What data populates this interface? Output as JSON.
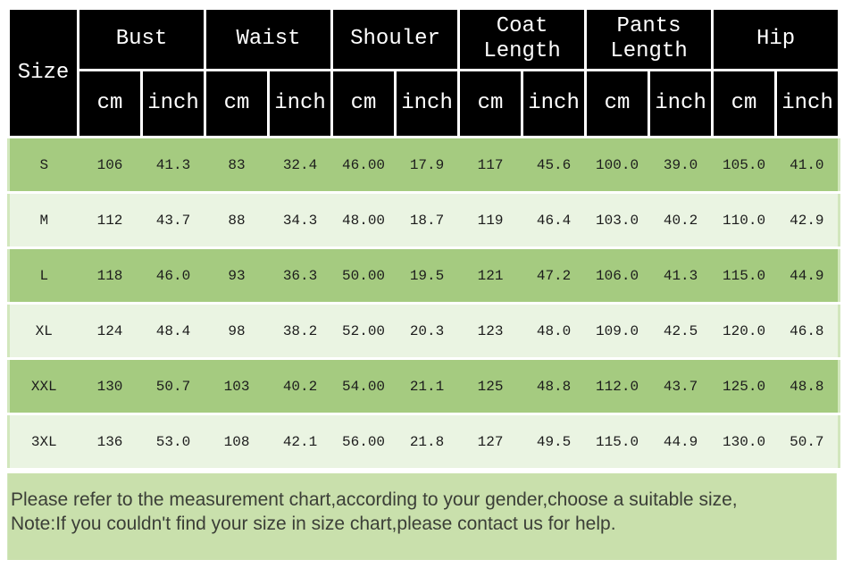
{
  "header": {
    "size": "Size",
    "groups": [
      {
        "label": "Bust",
        "sub": [
          "cm",
          "inch"
        ]
      },
      {
        "label": "Waist",
        "sub": [
          "cm",
          "inch"
        ]
      },
      {
        "label": "Shouler",
        "sub": [
          "cm",
          "inch"
        ]
      },
      {
        "label": "Coat Length",
        "sub": [
          "cm",
          "inch"
        ]
      },
      {
        "label": "Pants Length",
        "sub": [
          "cm",
          "inch"
        ]
      },
      {
        "label": "Hip",
        "sub": [
          "cm",
          "inch"
        ]
      }
    ]
  },
  "chart_data": {
    "type": "table",
    "title": "Garment size measurement chart",
    "columns": [
      "Size",
      "Bust (cm)",
      "Bust (inch)",
      "Waist (cm)",
      "Waist (inch)",
      "Shouler (cm)",
      "Shouler (inch)",
      "Coat Length (cm)",
      "Coat Length (inch)",
      "Pants Length (cm)",
      "Pants Length (inch)",
      "Hip (cm)",
      "Hip (inch)"
    ],
    "rows": [
      [
        "S",
        "106",
        "41.3",
        "83",
        "32.4",
        "46.00",
        "17.9",
        "117",
        "45.6",
        "100.0",
        "39.0",
        "105.0",
        "41.0"
      ],
      [
        "M",
        "112",
        "43.7",
        "88",
        "34.3",
        "48.00",
        "18.7",
        "119",
        "46.4",
        "103.0",
        "40.2",
        "110.0",
        "42.9"
      ],
      [
        "L",
        "118",
        "46.0",
        "93",
        "36.3",
        "50.00",
        "19.5",
        "121",
        "47.2",
        "106.0",
        "41.3",
        "115.0",
        "44.9"
      ],
      [
        "XL",
        "124",
        "48.4",
        "98",
        "38.2",
        "52.00",
        "20.3",
        "123",
        "48.0",
        "109.0",
        "42.5",
        "120.0",
        "46.8"
      ],
      [
        "XXL",
        "130",
        "50.7",
        "103",
        "40.2",
        "54.00",
        "21.1",
        "125",
        "48.8",
        "112.0",
        "43.7",
        "125.0",
        "48.8"
      ],
      [
        "3XL",
        "136",
        "53.0",
        "108",
        "42.1",
        "56.00",
        "21.8",
        "127",
        "49.5",
        "115.0",
        "44.9",
        "130.0",
        "50.7"
      ]
    ]
  },
  "note": {
    "line1": "Please refer to the measurement chart,according to your gender,choose a suitable size,",
    "line2": "Note:If you couldn't find your size in size chart,please contact us for help."
  },
  "colors": {
    "header_bg": "#000000",
    "header_text": "#ffffff",
    "row_odd_bg": "#a5cb80",
    "row_even_bg": "#eaf4e2",
    "note_bg": "#c9e0ac",
    "note_text": "#3b3e37",
    "cell_text": "#1c1c1c"
  }
}
